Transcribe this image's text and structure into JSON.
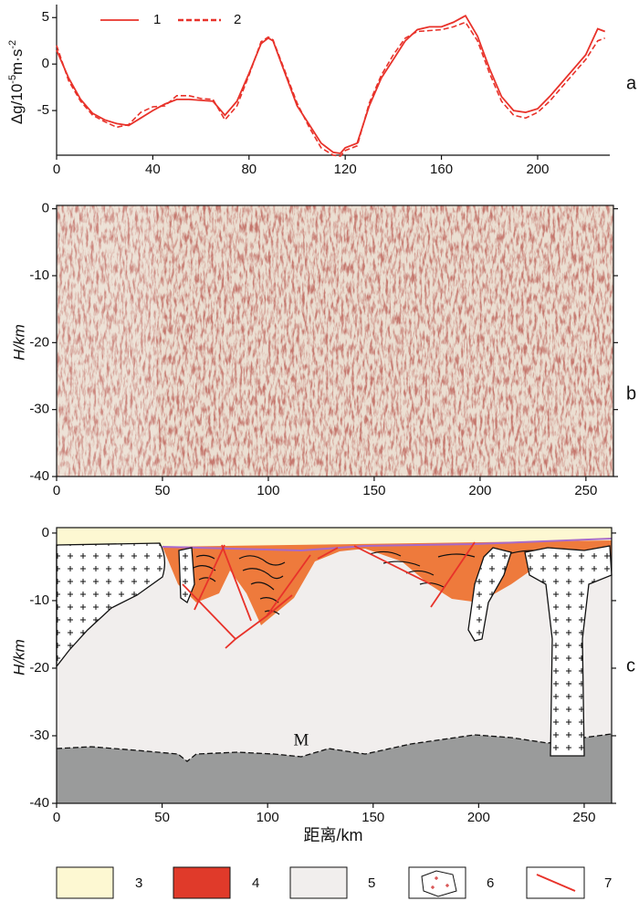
{
  "chart_data": [
    {
      "type": "line",
      "panel": "a",
      "y_label_parts": [
        "Δg/10",
        "-5",
        "m·s",
        "-2"
      ],
      "x": [
        0,
        5,
        10,
        15,
        20,
        25,
        30,
        35,
        40,
        45,
        50,
        55,
        60,
        65,
        70,
        75,
        80,
        85,
        88,
        90,
        95,
        100,
        105,
        110,
        115,
        118,
        120,
        125,
        130,
        135,
        140,
        145,
        150,
        155,
        160,
        165,
        170,
        175,
        180,
        185,
        190,
        195,
        200,
        205,
        210,
        215,
        220,
        225,
        228
      ],
      "series": [
        {
          "name": "1",
          "color": "#e8322a",
          "line_style": "solid",
          "values": [
            1.5,
            -1.5,
            -3.8,
            -5.3,
            -6,
            -6.4,
            -6.6,
            -5.8,
            -5,
            -4.3,
            -3.8,
            -3.8,
            -3.9,
            -4,
            -5.5,
            -4,
            -1,
            2.2,
            2.8,
            2.5,
            -1,
            -4.5,
            -6.5,
            -8.5,
            -9.5,
            -9.6,
            -9,
            -8.5,
            -4.5,
            -1.5,
            0.5,
            2.5,
            3.7,
            4,
            4,
            4.5,
            5.2,
            3,
            -0.5,
            -3.5,
            -5,
            -5.2,
            -4.8,
            -3.5,
            -2,
            -0.5,
            1,
            3.8,
            3.5
          ]
        },
        {
          "name": "2",
          "color": "#e8322a",
          "line_style": "dashed",
          "values": [
            2,
            -1.8,
            -4,
            -5.5,
            -6.2,
            -6.8,
            -6.5,
            -5.2,
            -4.6,
            -4.5,
            -3.4,
            -3.4,
            -3.7,
            -3.8,
            -6,
            -4.5,
            -1.2,
            2.4,
            2.9,
            2.6,
            -0.8,
            -4.2,
            -6.8,
            -9,
            -9.8,
            -9.9,
            -9.3,
            -8.8,
            -4.2,
            -1.2,
            1,
            2.8,
            3.5,
            3.6,
            3.7,
            4,
            4.5,
            2.5,
            -1,
            -4,
            -5.5,
            -5.8,
            -5.2,
            -4,
            -2.5,
            -1,
            0.5,
            2.5,
            2.8
          ]
        }
      ],
      "xlim": [
        0,
        230
      ],
      "xticks": [
        0,
        40,
        80,
        120,
        160,
        200
      ],
      "ylim": [
        -9.8,
        6.4
      ],
      "yticks": [
        -5,
        0,
        5
      ]
    },
    {
      "type": "seismic-image",
      "panel": "b",
      "y_label": "H/km",
      "xlim": [
        0,
        263
      ],
      "xticks": [
        0,
        50,
        100,
        150,
        200,
        250
      ],
      "ylim": [
        -40,
        0.5
      ],
      "yticks": [
        0,
        -10,
        -20,
        -30,
        -40
      ]
    },
    {
      "type": "cross-section",
      "panel": "c",
      "y_label": "H/km",
      "x_label": "距离/km",
      "moho_label": "M",
      "xlim": [
        0,
        263
      ],
      "xticks": [
        0,
        50,
        100,
        150,
        200,
        250
      ],
      "ylim": [
        -40,
        0.8
      ],
      "yticks": [
        0,
        -10,
        -20,
        -30,
        -40
      ]
    }
  ],
  "legend": {
    "items": [
      {
        "label": "3"
      },
      {
        "label": "4"
      },
      {
        "label": "5"
      },
      {
        "label": "6"
      },
      {
        "label": "7"
      }
    ]
  }
}
